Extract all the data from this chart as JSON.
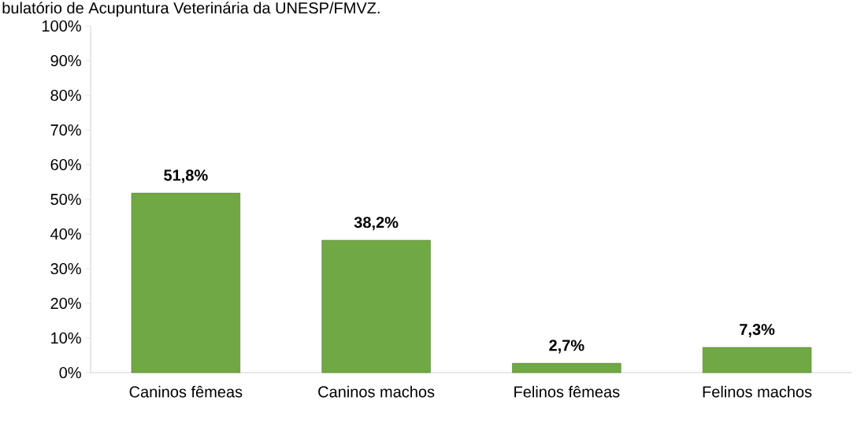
{
  "chart_data": {
    "type": "bar",
    "title": "bulatório de Acupuntura Veterinária da UNESP/FMVZ.",
    "categories": [
      "Caninos fêmeas",
      "Caninos machos",
      "Felinos fêmeas",
      "Felinos machos"
    ],
    "values": [
      51.8,
      38.2,
      2.7,
      7.3
    ],
    "value_labels": [
      "51,8%",
      "38,2%",
      "2,7%",
      "7,3%"
    ],
    "color": "#70a844",
    "ylim": [
      0,
      100
    ],
    "yticks": [
      {
        "value": 0,
        "label": "0%"
      },
      {
        "value": 10,
        "label": "10%"
      },
      {
        "value": 20,
        "label": "20%"
      },
      {
        "value": 30,
        "label": "30%"
      },
      {
        "value": 40,
        "label": "40%"
      },
      {
        "value": 50,
        "label": "50%"
      },
      {
        "value": 60,
        "label": "60%"
      },
      {
        "value": 70,
        "label": "70%"
      },
      {
        "value": 80,
        "label": "80%"
      },
      {
        "value": 90,
        "label": "90%"
      },
      {
        "value": 100,
        "label": "100%"
      }
    ],
    "grid": false
  }
}
